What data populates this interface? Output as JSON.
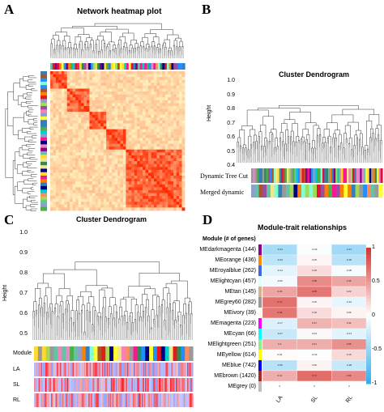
{
  "panel_a": {
    "letter": "A",
    "title": "Network heatmap plot"
  },
  "panel_b": {
    "letter": "B",
    "title": "Cluster Dendrogram",
    "ylabel": "Height",
    "yticks": [
      "1.0",
      "0.9",
      "0.8",
      "0.7",
      "0.6",
      "0.5",
      "0.4"
    ],
    "row_labels": [
      "Dynamic Tree Cut",
      "Merged dynamic"
    ]
  },
  "panel_c": {
    "letter": "C",
    "title": "Cluster Dendrogram",
    "ylabel": "Height",
    "yticks": [
      "1.0",
      "0.9",
      "0.8",
      "0.7",
      "0.6",
      "0.5"
    ],
    "row_labels": [
      "Module",
      "LA",
      "SL",
      "RL"
    ]
  },
  "panel_d": {
    "letter": "D"
  },
  "chart_data": {
    "type": "heatmap",
    "title": "Module-trait relationships",
    "ylabel": "Module (# of genes)",
    "columns": [
      "LA",
      "SL",
      "RL"
    ],
    "rows": [
      "MEdarkmagenta (144)",
      "MEorange (436)",
      "MEroyalblue (262)",
      "MElightcyan (457)",
      "MEtan (145)",
      "MEgrey60 (282)",
      "MEivory (39)",
      "MEmagenta (223)",
      "MEcyan (66)",
      "MElightgreen (251)",
      "MEyellow (614)",
      "MEblue (742)",
      "MEbrown (1420)",
      "MEgrey (0)"
    ],
    "module_colors": [
      "#8b008b",
      "#ff8c00",
      "#4169e1",
      "#e0ffff",
      "#d2b48c",
      "#999999",
      "#fffff0",
      "#ff00ff",
      "#00ffff",
      "#90ee90",
      "#ffff00",
      "#0000ff",
      "#a52a2a",
      "#bebebe"
    ],
    "values": [
      [
        -0.44,
        -0.03,
        -0.47
      ],
      [
        -0.33,
        0.05,
        -0.36
      ],
      [
        -0.14,
        0.18,
        -0.05
      ],
      [
        -0.06,
        0.58,
        0.45
      ],
      [
        0.45,
        0.68,
        0.22
      ],
      [
        0.71,
        0.05,
        -0.12
      ],
      [
        0.68,
        0.18,
        0.06
      ],
      [
        -0.17,
        0.37,
        0.32
      ],
      [
        -0.27,
        0.04,
        -0.14
      ],
      [
        0.4,
        0.41,
        0.55
      ],
      [
        0.02,
        -0.02,
        0.19
      ],
      [
        -0.36,
        0.06,
        -0.28
      ],
      [
        0.41,
        0.73,
        0.59
      ],
      [
        0.0,
        0.0,
        0.0
      ]
    ],
    "colorbar": {
      "ticks": [
        "1",
        "0.5",
        "0",
        "-0.5",
        "-1"
      ],
      "range": [
        -1,
        1
      ]
    }
  }
}
